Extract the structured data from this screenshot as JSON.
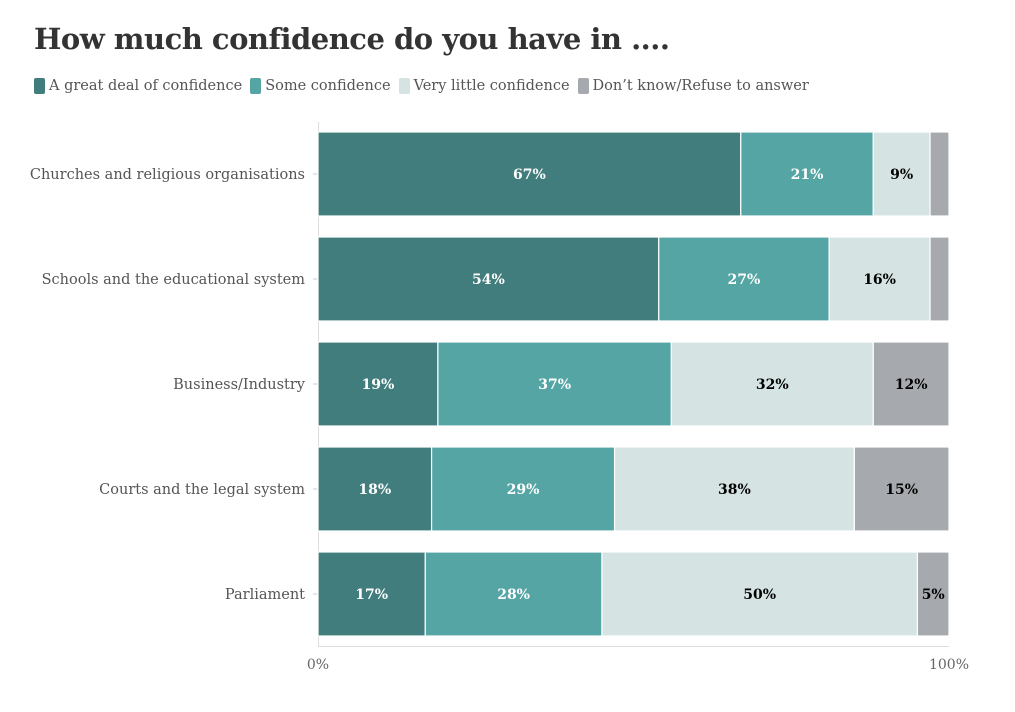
{
  "chart_data": {
    "type": "stacked-bar-horizontal",
    "title": "How much confidence do you have in ....",
    "categories": [
      "Churches and religious organisations",
      "Schools and the educational system",
      "Business/Industry",
      "Courts and the legal system",
      "Parliament"
    ],
    "series": [
      {
        "name": "A great deal of confidence",
        "color": "#417d7c",
        "label_color": "#ffffff",
        "values": [
          67,
          54,
          19,
          18,
          17
        ],
        "labels": [
          "67%",
          "54%",
          "19%",
          "18%",
          "17%"
        ]
      },
      {
        "name": "Some confidence",
        "color": "#55a5a5",
        "label_color": "#ffffff",
        "values": [
          21,
          27,
          37,
          29,
          28
        ],
        "labels": [
          "21%",
          "27%",
          "37%",
          "29%",
          "28%"
        ]
      },
      {
        "name": "Very little confidence",
        "color": "#d5e3e2",
        "label_color": "#000000",
        "values": [
          9,
          16,
          32,
          38,
          50
        ],
        "labels": [
          "9%",
          "16%",
          "32%",
          "38%",
          "50%"
        ]
      },
      {
        "name": "Don’t know/Refuse to answer",
        "color": "#a6a9ad",
        "label_color": "#000000",
        "values": [
          3,
          3,
          12,
          15,
          5
        ],
        "labels": [
          "",
          "",
          "12%",
          "15%",
          "5%"
        ]
      }
    ],
    "xlim": [
      0,
      100
    ],
    "x_ticks": [
      "0%",
      "100%"
    ],
    "legend_position": "top-left"
  }
}
